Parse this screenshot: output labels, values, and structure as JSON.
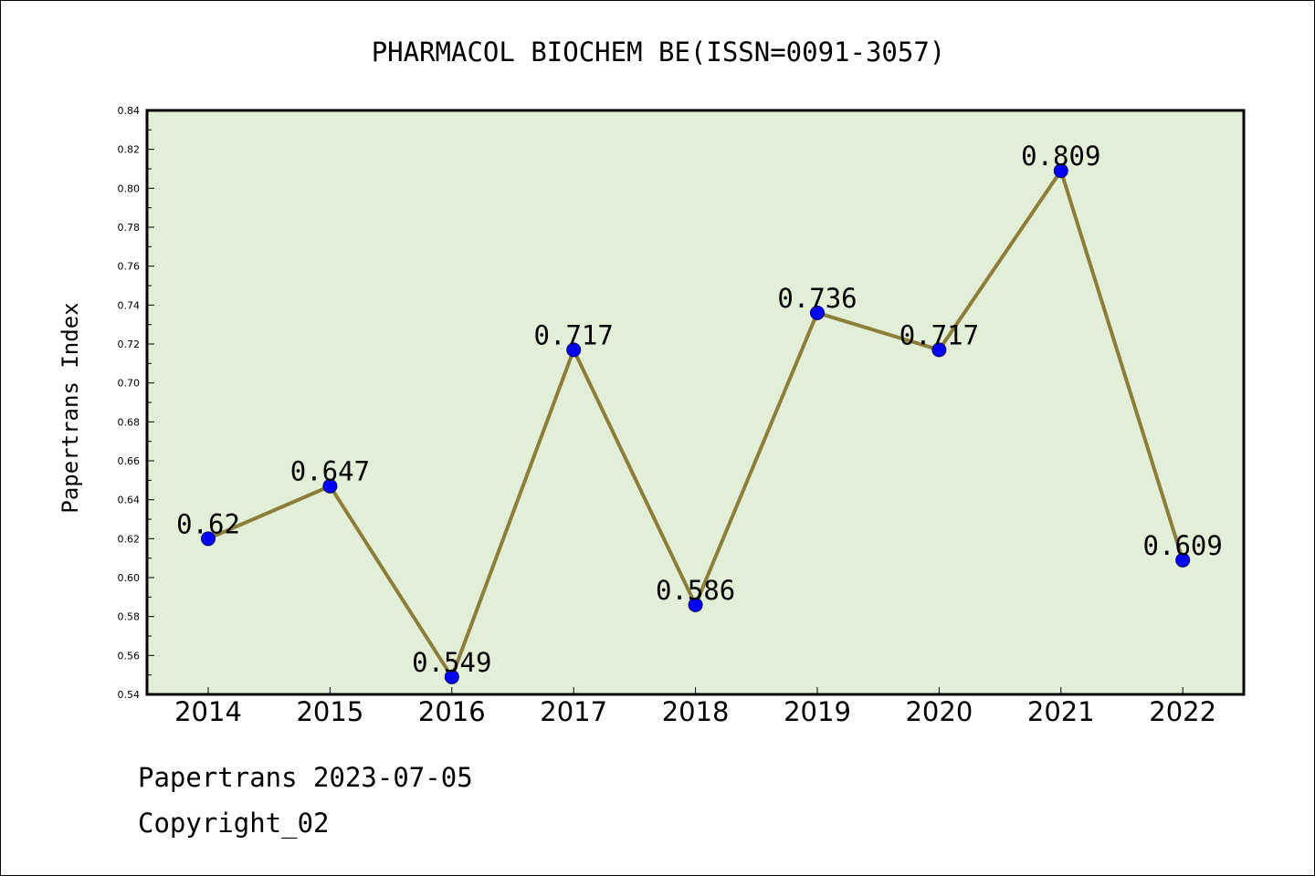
{
  "chart_data": {
    "type": "line",
    "title": "PHARMACOL BIOCHEM BE(ISSN=0091-3057)",
    "xlabel": "",
    "ylabel": "Papertrans Index",
    "categories": [
      "2014",
      "2015",
      "2016",
      "2017",
      "2018",
      "2019",
      "2020",
      "2021",
      "2022"
    ],
    "values": [
      0.62,
      0.647,
      0.549,
      0.717,
      0.586,
      0.736,
      0.717,
      0.809,
      0.609
    ],
    "data_labels": [
      "0.62",
      "0.647",
      "0.549",
      "0.717",
      "0.586",
      "0.736",
      "0.717",
      "0.809",
      "0.609"
    ],
    "ylim": [
      0.54,
      0.84
    ],
    "y_ticks": [
      "0.54",
      "0.56",
      "0.58",
      "0.60",
      "0.62",
      "0.64",
      "0.66",
      "0.68",
      "0.70",
      "0.72",
      "0.74",
      "0.76",
      "0.78",
      "0.80",
      "0.82",
      "0.84"
    ],
    "grid": false,
    "legend": "none",
    "colors": {
      "plot_background": "#e2efd6",
      "line": "#8b7d3a",
      "marker": "#0000ff",
      "axis": "#000000"
    }
  },
  "footer": {
    "line1": "Papertrans 2023-07-05",
    "line2": "Copyright_02"
  }
}
